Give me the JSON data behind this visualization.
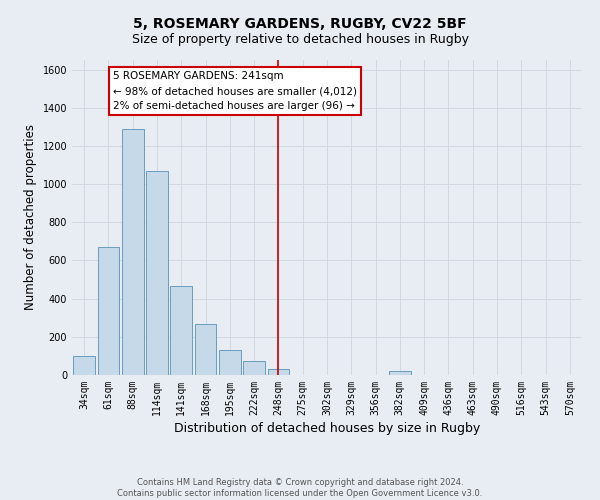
{
  "title": "5, ROSEMARY GARDENS, RUGBY, CV22 5BF",
  "subtitle": "Size of property relative to detached houses in Rugby",
  "xlabel": "Distribution of detached houses by size in Rugby",
  "ylabel": "Number of detached properties",
  "bin_labels": [
    "34sqm",
    "61sqm",
    "88sqm",
    "114sqm",
    "141sqm",
    "168sqm",
    "195sqm",
    "222sqm",
    "248sqm",
    "275sqm",
    "302sqm",
    "329sqm",
    "356sqm",
    "382sqm",
    "409sqm",
    "436sqm",
    "463sqm",
    "490sqm",
    "516sqm",
    "543sqm",
    "570sqm"
  ],
  "bar_heights": [
    100,
    670,
    1290,
    1070,
    465,
    265,
    130,
    75,
    30,
    0,
    0,
    0,
    0,
    20,
    0,
    0,
    0,
    0,
    0,
    0,
    0
  ],
  "bar_color": "#c6d9e8",
  "bar_edge_color": "#6a9cbc",
  "vline_color": "#cc0000",
  "annotation_text": "5 ROSEMARY GARDENS: 241sqm\n← 98% of detached houses are smaller (4,012)\n2% of semi-detached houses are larger (96) →",
  "annotation_box_edge_color": "#cc0000",
  "annotation_box_face_color": "#ffffff",
  "ylim": [
    0,
    1650
  ],
  "yticks": [
    0,
    200,
    400,
    600,
    800,
    1000,
    1200,
    1400,
    1600
  ],
  "grid_color": "#d0d8e0",
  "bg_color": "#e8edf3",
  "footer_line1": "Contains HM Land Registry data © Crown copyright and database right 2024.",
  "footer_line2": "Contains public sector information licensed under the Open Government Licence v3.0.",
  "title_fontsize": 10,
  "subtitle_fontsize": 9,
  "axis_label_fontsize": 8.5,
  "tick_fontsize": 7,
  "footer_fontsize": 6
}
